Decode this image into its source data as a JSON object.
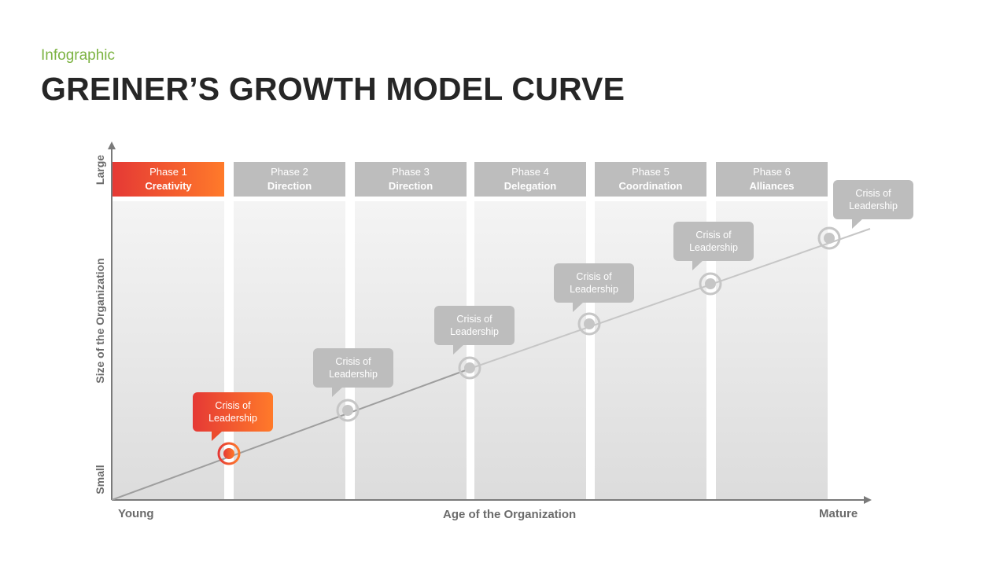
{
  "header": {
    "subtitle": "Infographic",
    "title": "GREINER’S GROWTH MODEL CURVE"
  },
  "axes": {
    "y_label": "Size of the Organization",
    "y_top": "Large",
    "y_bottom": "Small",
    "x_label": "Age of the Organization",
    "x_left": "Young",
    "x_right": "Mature"
  },
  "phases": [
    {
      "number": "Phase 1",
      "name": "Creativity",
      "active": true
    },
    {
      "number": "Phase 2",
      "name": "Direction",
      "active": false
    },
    {
      "number": "Phase 3",
      "name": "Direction",
      "active": false
    },
    {
      "number": "Phase 4",
      "name": "Delegation",
      "active": false
    },
    {
      "number": "Phase 5",
      "name": "Coordination",
      "active": false
    },
    {
      "number": "Phase 6",
      "name": "Alliances",
      "active": false
    }
  ],
  "crises": [
    {
      "line1": "Crisis of",
      "line2": "Leadership",
      "active": true
    },
    {
      "line1": "Crisis of",
      "line2": "Leadership",
      "active": false
    },
    {
      "line1": "Crisis of",
      "line2": "Leadership",
      "active": false
    },
    {
      "line1": "Crisis of",
      "line2": "Leadership",
      "active": false
    },
    {
      "line1": "Crisis of",
      "line2": "Leadership",
      "active": false
    },
    {
      "line1": "Crisis of",
      "line2": "Leadership",
      "active": false
    }
  ],
  "colors": {
    "accent_start": "#e53935",
    "accent_end": "#ff7a2a",
    "inactive": "#bdbdbd",
    "subtitle": "#7cb342"
  }
}
